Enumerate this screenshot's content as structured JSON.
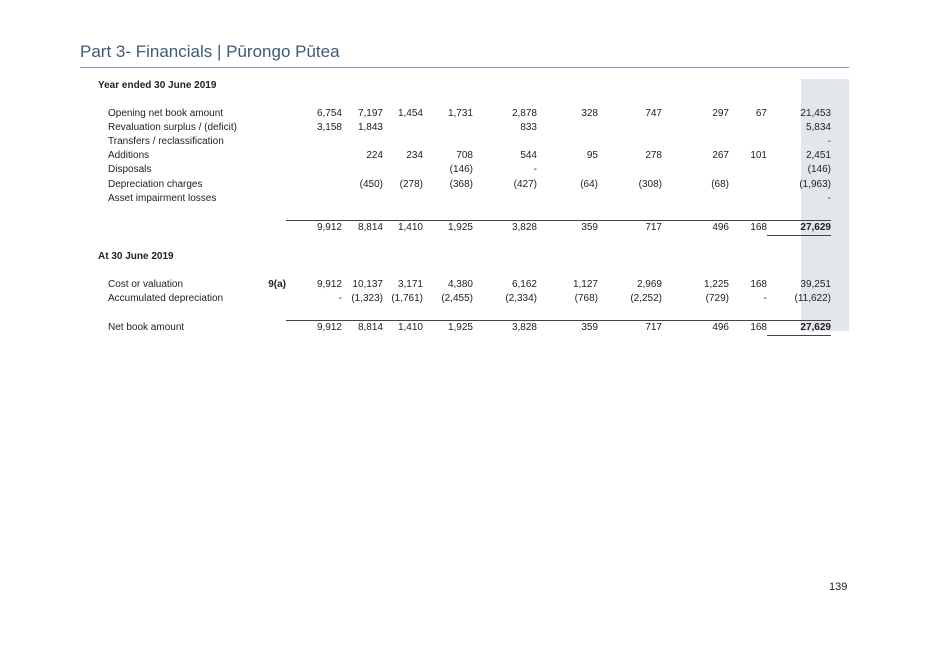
{
  "header": {
    "title": "Part 3- Financials | Pūrongo Pūtea"
  },
  "sections": {
    "year": {
      "heading": "Year ended 30 June 2019",
      "rows": [
        {
          "label": "Opening net book amount",
          "note": "",
          "values": [
            "6,754",
            "7,197",
            "1,454",
            "1,731",
            "2,878",
            "328",
            "747",
            "297",
            "67",
            "21,453"
          ]
        },
        {
          "label": "Revaluation surplus / (deficit)",
          "note": "",
          "values": [
            "3,158",
            "1,843",
            "",
            "",
            "833",
            "",
            "",
            "",
            "",
            "5,834"
          ]
        },
        {
          "label": "Transfers / reclassification",
          "note": "",
          "values": [
            "",
            "",
            "",
            "",
            "",
            "",
            "",
            "",
            "",
            "-"
          ]
        },
        {
          "label": "Additions",
          "note": "",
          "values": [
            "",
            "224",
            "234",
            "708",
            "544",
            "95",
            "278",
            "267",
            "101",
            "2,451"
          ]
        },
        {
          "label": "Disposals",
          "note": "",
          "values": [
            "",
            "",
            "",
            "(146)",
            "-",
            "",
            "",
            "",
            "",
            "(146)"
          ]
        },
        {
          "label": "Depreciation charges",
          "note": "",
          "values": [
            "",
            "(450)",
            "(278)",
            "(368)",
            "(427)",
            "(64)",
            "(308)",
            "(68)",
            "",
            "(1,963)"
          ]
        },
        {
          "label": "Asset impairment losses",
          "note": "",
          "values": [
            "",
            "",
            "",
            "",
            "",
            "",
            "",
            "",
            "",
            "-"
          ]
        }
      ],
      "total": {
        "values": [
          "9,912",
          "8,814",
          "1,410",
          "1,925",
          "3,828",
          "359",
          "717",
          "496",
          "168",
          "27,629"
        ]
      }
    },
    "at": {
      "heading": "At 30 June 2019",
      "rows": [
        {
          "label": "Cost or valuation",
          "note": "9(a)",
          "values": [
            "9,912",
            "10,137",
            "3,171",
            "4,380",
            "6,162",
            "1,127",
            "2,969",
            "1,225",
            "168",
            "39,251"
          ]
        },
        {
          "label": "Accumulated depreciation",
          "note": "",
          "values": [
            "-",
            "(1,323)",
            "(1,761)",
            "(2,455)",
            "(2,334)",
            "(768)",
            "(2,252)",
            "(729)",
            "-",
            "(11,622)"
          ]
        }
      ],
      "total": {
        "label": "Net book amount",
        "values": [
          "9,912",
          "8,814",
          "1,410",
          "1,925",
          "3,828",
          "359",
          "717",
          "496",
          "168",
          "27,629"
        ]
      }
    }
  },
  "page_number": "139"
}
